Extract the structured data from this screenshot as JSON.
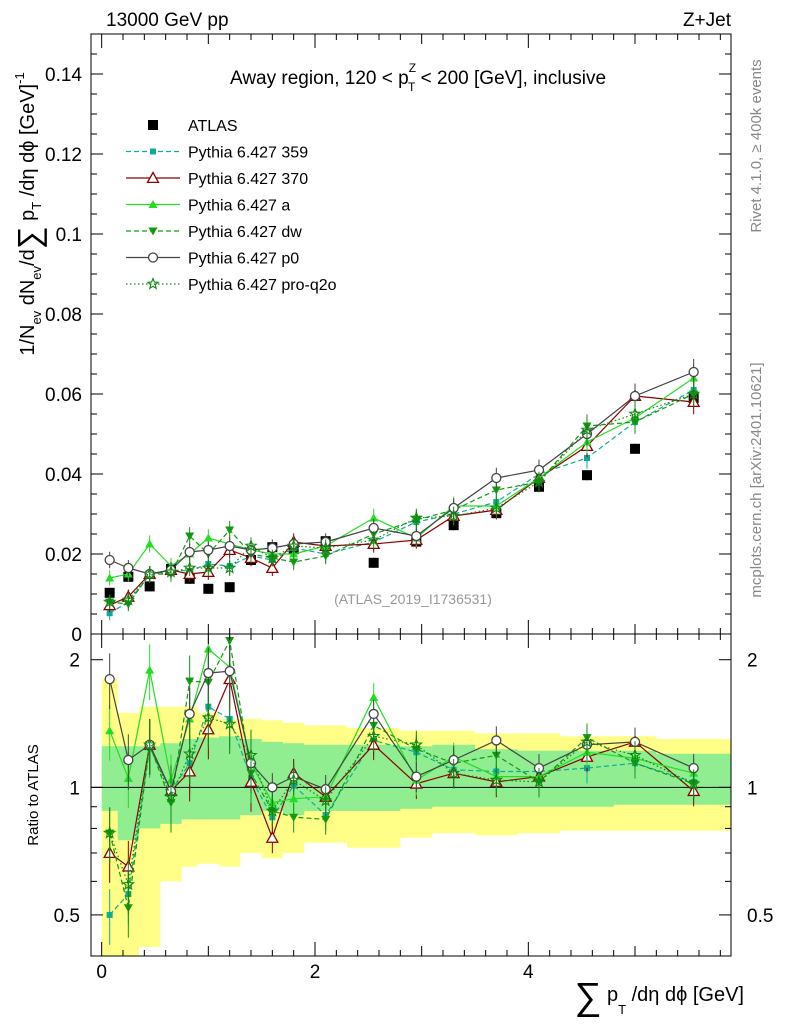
{
  "header": {
    "left": "13000 GeV pp",
    "right": "Z+Jet"
  },
  "side_labels": {
    "rivet": "Rivet 4.1.0, ≥ 400k events",
    "mcplots": "mcplots.cern.ch [arXiv:2401.10621]"
  },
  "watermark": "(ATLAS_2019_I1736531)",
  "colors": {
    "atlas": "#000000",
    "p359": "#11aa99",
    "p370": "#8b0000",
    "pa": "#22dd22",
    "pdw": "#119911",
    "pp0": "#444444",
    "ppro": "#118811",
    "band_stat": "#90ee90",
    "band_tot": "#ffff88"
  },
  "chart_data": [
    {
      "type": "scatter",
      "title": "Away region, 120 < p_T^Z < 200 [GeV], inclusive",
      "title_parts": [
        "Away region, 120 < p",
        "Z",
        "T",
        " < 200 [GeV], inclusive"
      ],
      "ylabel": "1/N_ev dN_ev/d∑ p_T /dη dϕ [GeV]^-1",
      "ylabel_parts": [
        "1/N",
        "ev",
        " dN",
        "ev",
        "/d",
        "∑",
        " p",
        "T",
        " /dη dϕ  [GeV]",
        "-1"
      ],
      "xlim": [
        -0.1,
        5.9
      ],
      "ylim": [
        0,
        0.15
      ],
      "yticks": [
        0,
        0.02,
        0.04,
        0.06,
        0.08,
        0.1,
        0.12,
        0.14
      ],
      "ytick_labels": [
        "0",
        "0.02",
        "0.04",
        "0.06",
        "0.08",
        "0.1",
        "0.12",
        "0.14"
      ],
      "x": [
        0.075,
        0.25,
        0.45,
        0.65,
        0.825,
        1.0,
        1.2,
        1.4,
        1.6,
        1.8,
        2.1,
        2.55,
        2.95,
        3.3,
        3.7,
        4.1,
        4.55,
        5.0,
        5.55
      ],
      "series": [
        {
          "name": "ATLAS",
          "key": "atlas",
          "values": [
            0.0103,
            0.0143,
            0.0119,
            0.0163,
            0.0138,
            0.0113,
            0.0117,
            0.0185,
            0.0217,
            0.0212,
            0.0232,
            0.0178,
            0.0231,
            0.0272,
            0.0302,
            0.0368,
            0.0397,
            0.0463,
            0.059
          ]
        },
        {
          "name": "Pythia 6.427 359",
          "key": "p359",
          "values": [
            0.0052,
            0.008,
            0.0148,
            0.016,
            0.0158,
            0.0175,
            0.017,
            0.0195,
            0.0185,
            0.0215,
            0.02,
            0.023,
            0.028,
            0.03,
            0.033,
            0.04,
            0.044,
            0.053,
            0.061
          ]
        },
        {
          "name": "Pythia 6.427 370",
          "key": "p370",
          "values": [
            0.0072,
            0.0093,
            0.015,
            0.016,
            0.015,
            0.0155,
            0.021,
            0.019,
            0.0165,
            0.023,
            0.022,
            0.0225,
            0.0235,
            0.0295,
            0.031,
            0.039,
            0.047,
            0.0595,
            0.058
          ]
        },
        {
          "name": "Pythia 6.427 a",
          "key": "pa",
          "values": [
            0.014,
            0.015,
            0.0225,
            0.017,
            0.02,
            0.024,
            0.0225,
            0.021,
            0.02,
            0.02,
            0.022,
            0.029,
            0.024,
            0.032,
            0.032,
            0.039,
            0.048,
            0.054,
            0.064
          ]
        },
        {
          "name": "Pythia 6.427 dw",
          "key": "pdw",
          "values": [
            0.008,
            0.0075,
            0.015,
            0.015,
            0.0245,
            0.02,
            0.026,
            0.02,
            0.019,
            0.018,
            0.0195,
            0.025,
            0.0285,
            0.031,
            0.036,
            0.038,
            0.052,
            0.053,
            0.06
          ]
        },
        {
          "name": "Pythia 6.427 p0",
          "key": "pp0",
          "values": [
            0.0185,
            0.0165,
            0.015,
            0.016,
            0.0205,
            0.021,
            0.022,
            0.021,
            0.0215,
            0.0225,
            0.023,
            0.0265,
            0.0245,
            0.0315,
            0.039,
            0.041,
            0.05,
            0.0595,
            0.0655
          ]
        },
        {
          "name": "Pythia 6.427 pro-q2o",
          "key": "ppro",
          "values": [
            0.008,
            0.0085,
            0.015,
            0.0155,
            0.0165,
            0.0165,
            0.0165,
            0.022,
            0.019,
            0.022,
            0.0215,
            0.0235,
            0.029,
            0.0295,
            0.0315,
            0.038,
            0.051,
            0.055,
            0.06
          ]
        }
      ]
    },
    {
      "type": "scatter",
      "title": "",
      "ylabel": "Ratio to ATLAS",
      "xlabel": "∑ p_T /dη dϕ [GeV]",
      "xlabel_parts": [
        "∑",
        " p",
        "T",
        " /dη dϕ [GeV]"
      ],
      "xlim": [
        -0.1,
        5.9
      ],
      "ylim": [
        0.4,
        2.3
      ],
      "ylog": true,
      "xticks": [
        0,
        2,
        4
      ],
      "xtick_labels": [
        "0",
        "2",
        "4"
      ],
      "yticks": [
        0.5,
        1,
        2
      ],
      "ytick_labels": [
        "0.5",
        "1",
        "2"
      ],
      "x": [
        0.075,
        0.25,
        0.45,
        0.65,
        0.825,
        1.0,
        1.2,
        1.4,
        1.6,
        1.8,
        2.1,
        2.55,
        2.95,
        3.3,
        3.7,
        4.1,
        4.55,
        5.0,
        5.55
      ],
      "bin_edges": [
        0.0,
        0.15,
        0.35,
        0.55,
        0.75,
        0.9,
        1.1,
        1.3,
        1.5,
        1.7,
        1.9,
        2.3,
        2.8,
        3.1,
        3.5,
        3.9,
        4.3,
        4.8,
        5.2,
        5.9
      ],
      "band_stat": [
        [
          0.88,
          1.25
        ],
        [
          0.75,
          1.25
        ],
        [
          0.8,
          1.25
        ],
        [
          0.82,
          1.27
        ],
        [
          0.84,
          1.3
        ],
        [
          0.84,
          1.31
        ],
        [
          0.84,
          1.32
        ],
        [
          0.86,
          1.3
        ],
        [
          0.88,
          1.28
        ],
        [
          0.86,
          1.27
        ],
        [
          0.88,
          1.26
        ],
        [
          0.88,
          1.26
        ],
        [
          0.89,
          1.25
        ],
        [
          0.9,
          1.26
        ],
        [
          0.9,
          1.23
        ],
        [
          0.9,
          1.22
        ],
        [
          0.9,
          1.22
        ],
        [
          0.91,
          1.22
        ],
        [
          0.91,
          1.2
        ]
      ],
      "band_total": [
        [
          0.4,
          1.8
        ],
        [
          0.4,
          1.5
        ],
        [
          0.42,
          1.55
        ],
        [
          0.6,
          1.55
        ],
        [
          0.65,
          1.55
        ],
        [
          0.66,
          1.5
        ],
        [
          0.65,
          1.45
        ],
        [
          0.7,
          1.45
        ],
        [
          0.68,
          1.44
        ],
        [
          0.7,
          1.42
        ],
        [
          0.74,
          1.4
        ],
        [
          0.72,
          1.38
        ],
        [
          0.76,
          1.36
        ],
        [
          0.78,
          1.36
        ],
        [
          0.77,
          1.34
        ],
        [
          0.78,
          1.34
        ],
        [
          0.79,
          1.32
        ],
        [
          0.79,
          1.32
        ],
        [
          0.79,
          1.3
        ]
      ],
      "series": [
        {
          "name": "Pythia 6.427 359",
          "key": "p359",
          "values": [
            0.5,
            0.56,
            1.24,
            0.98,
            1.14,
            1.55,
            1.45,
            1.05,
            0.85,
            1.01,
            0.86,
            1.29,
            1.21,
            1.1,
            1.09,
            1.09,
            1.11,
            1.14,
            1.03
          ]
        },
        {
          "name": "Pythia 6.427 370",
          "key": "p370",
          "values": [
            0.7,
            0.65,
            1.26,
            0.98,
            1.09,
            1.37,
            1.8,
            1.03,
            0.76,
            1.08,
            0.95,
            1.26,
            1.02,
            1.08,
            1.03,
            1.06,
            1.18,
            1.28,
            0.98
          ]
        },
        {
          "name": "Pythia 6.427 a",
          "key": "pa",
          "values": [
            1.36,
            1.05,
            1.89,
            1.04,
            1.45,
            2.12,
            1.92,
            1.14,
            0.92,
            0.94,
            0.95,
            1.63,
            1.04,
            1.18,
            1.06,
            1.06,
            1.21,
            1.17,
            1.08
          ]
        },
        {
          "name": "Pythia 6.427 dw",
          "key": "pdw",
          "values": [
            0.78,
            0.52,
            1.26,
            0.92,
            1.78,
            1.77,
            2.22,
            1.08,
            0.88,
            0.85,
            0.84,
            1.4,
            1.23,
            1.14,
            1.19,
            1.03,
            1.31,
            1.14,
            1.02
          ]
        },
        {
          "name": "Pythia 6.427 p0",
          "key": "pp0",
          "values": [
            1.8,
            1.16,
            1.26,
            0.98,
            1.49,
            1.86,
            1.88,
            1.14,
            1.0,
            1.06,
            0.99,
            1.49,
            1.06,
            1.16,
            1.29,
            1.11,
            1.26,
            1.28,
            1.11
          ]
        },
        {
          "name": "Pythia 6.427 pro-q2o",
          "key": "ppro",
          "values": [
            0.78,
            0.59,
            1.26,
            0.95,
            1.2,
            1.46,
            1.41,
            1.19,
            0.88,
            1.04,
            0.93,
            1.32,
            1.26,
            1.08,
            1.04,
            1.03,
            1.28,
            1.19,
            1.02
          ]
        }
      ]
    }
  ]
}
